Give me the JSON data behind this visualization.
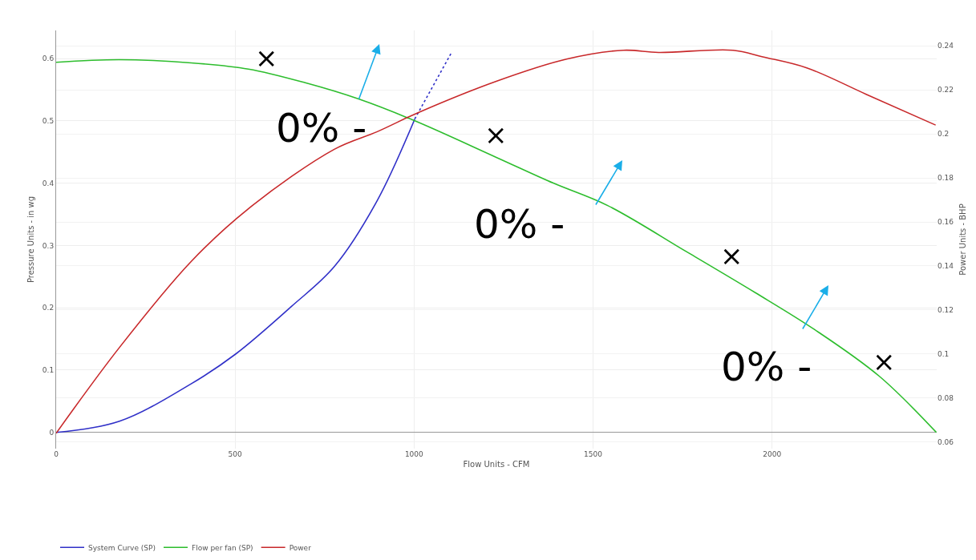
{
  "chart_data": {
    "type": "line",
    "xlabel": "Flow Units - CFM",
    "ylabel": "Pressure Units - in wg",
    "y2label": "Power Units - BHP",
    "xlim": [
      0,
      2460
    ],
    "xticks": [
      0,
      500,
      1000,
      1500,
      2000
    ],
    "ylim": [
      -0.026,
      0.645
    ],
    "yticks": [
      0,
      0.1,
      0.2,
      0.3,
      0.4,
      0.5,
      0.6
    ],
    "y2lim": [
      0.057,
      0.247
    ],
    "y2ticks": [
      0.06,
      0.08,
      0.1,
      0.12,
      0.14,
      0.16,
      0.18,
      0.2,
      0.22,
      0.24
    ],
    "grid": true,
    "legend": "bottom left",
    "marker": "none",
    "line_style": "solid",
    "series": [
      {
        "name": "System Curve (SP)",
        "color": "#3030c8",
        "x": [
          0,
          177,
          377,
          502,
          657,
          777,
          897,
          1002
        ],
        "values": [
          0,
          0.018,
          0.078,
          0.126,
          0.202,
          0.266,
          0.372,
          0.503
        ]
      },
      {
        "color": "#3030c8",
        "line_style": "dotted",
        "x": [
          1002,
          1106
        ],
        "values": [
          0.503,
          0.611
        ]
      },
      {
        "name": "Flow per fan (SP)",
        "color": "#2dbd2d",
        "x": [
          0,
          177,
          377,
          537,
          696,
          845,
          1002,
          1231,
          1389,
          1541,
          1761,
          1954,
          2119,
          2300,
          2459
        ],
        "values": [
          0.594,
          0.598,
          0.593,
          0.583,
          0.561,
          0.535,
          0.5,
          0.441,
          0.4,
          0.364,
          0.29,
          0.224,
          0.165,
          0.09,
          0
        ]
      },
      {
        "name": "Power",
        "color": "#c8282a",
        "axis": "y2",
        "x": [
          0,
          177,
          377,
          537,
          777,
          897,
          1016,
          1231,
          1426,
          1585,
          1683,
          1891,
          1974,
          2097,
          2263,
          2457
        ],
        "values": [
          0.064,
          0.103,
          0.142,
          0.166,
          0.193,
          0.201,
          0.21,
          0.224,
          0.234,
          0.238,
          0.237,
          0.238,
          0.235,
          0.23,
          0.218,
          0.204
        ]
      }
    ],
    "annotations": [
      "0% -",
      "0% -",
      "0% -",
      "×",
      "×",
      "×",
      "×"
    ]
  }
}
